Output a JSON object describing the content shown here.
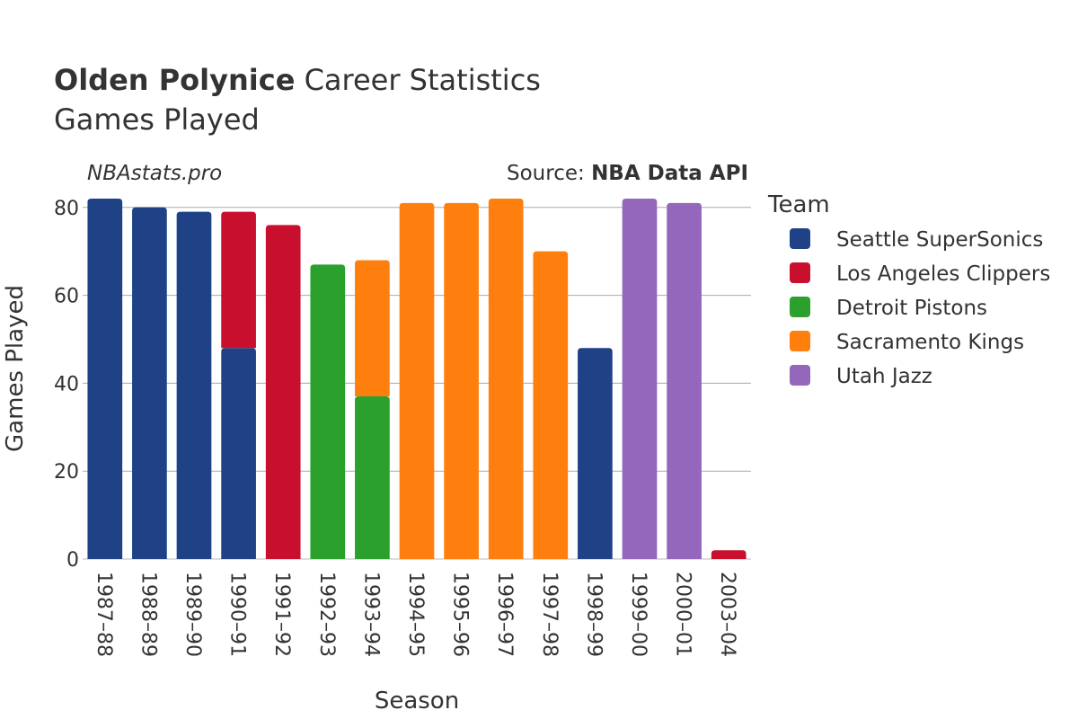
{
  "chart_data": {
    "type": "bar",
    "stacked": true,
    "title_bold": "Olden Polynice",
    "title_rest": "Career Statistics",
    "subtitle": "Games Played",
    "watermark": "NBAstats.pro",
    "source_prefix": "Source: ",
    "source_name": "NBA Data API",
    "xlabel": "Season",
    "ylabel": "Games Played",
    "ylim": [
      0,
      82
    ],
    "yticks": [
      0,
      20,
      40,
      60,
      80
    ],
    "grid": true,
    "legend_title": "Team",
    "legend_position": "right",
    "categories": [
      "1987–88",
      "1988–89",
      "1989–90",
      "1990–91",
      "1991–92",
      "1992–93",
      "1993–94",
      "1994–95",
      "1995–96",
      "1996–97",
      "1997–98",
      "1998–99",
      "1999–00",
      "2000–01",
      "2003–04"
    ],
    "series": [
      {
        "name": "Seattle SuperSonics",
        "color": "#1f4287",
        "values": [
          82,
          80,
          79,
          48,
          0,
          0,
          0,
          0,
          0,
          0,
          0,
          48,
          0,
          0,
          0
        ]
      },
      {
        "name": "Los Angeles Clippers",
        "color": "#c8102e",
        "values": [
          0,
          0,
          0,
          31,
          76,
          0,
          0,
          0,
          0,
          0,
          0,
          0,
          0,
          0,
          2
        ]
      },
      {
        "name": "Detroit Pistons",
        "color": "#2ca02c",
        "values": [
          0,
          0,
          0,
          0,
          0,
          67,
          37,
          0,
          0,
          0,
          0,
          0,
          0,
          0,
          0
        ]
      },
      {
        "name": "Sacramento Kings",
        "color": "#ff7f0e",
        "values": [
          0,
          0,
          0,
          0,
          0,
          0,
          31,
          81,
          81,
          82,
          70,
          0,
          0,
          0,
          0
        ]
      },
      {
        "name": "Utah Jazz",
        "color": "#9467bd",
        "values": [
          0,
          0,
          0,
          0,
          0,
          0,
          0,
          0,
          0,
          0,
          0,
          0,
          82,
          81,
          0
        ]
      }
    ]
  }
}
